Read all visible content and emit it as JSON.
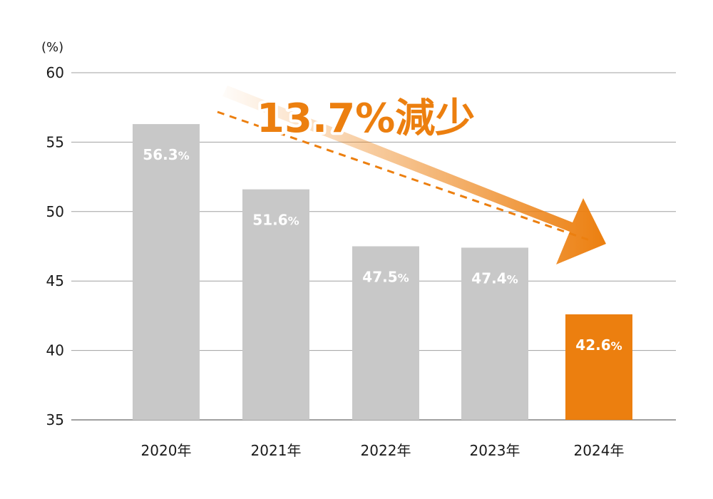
{
  "chart_data": {
    "type": "bar",
    "unit_label": "(%)",
    "categories": [
      "2020年",
      "2021年",
      "2022年",
      "2023年",
      "2024年"
    ],
    "values": [
      56.3,
      51.6,
      47.5,
      47.4,
      42.6
    ],
    "data_labels": [
      "56.3",
      "51.6",
      "47.5",
      "47.4",
      "42.6"
    ],
    "data_label_suffix": "%",
    "ylim": [
      35,
      60
    ],
    "yticks": [
      60,
      55,
      50,
      45,
      40,
      35
    ],
    "grid": true,
    "highlight_index": 4,
    "annotation": "13.7%減少",
    "colors": {
      "bar": "#c8c8c8",
      "highlight": "#ec7f0f",
      "grid": "#a0a0a0",
      "arrow": "#ec7f0f"
    }
  }
}
